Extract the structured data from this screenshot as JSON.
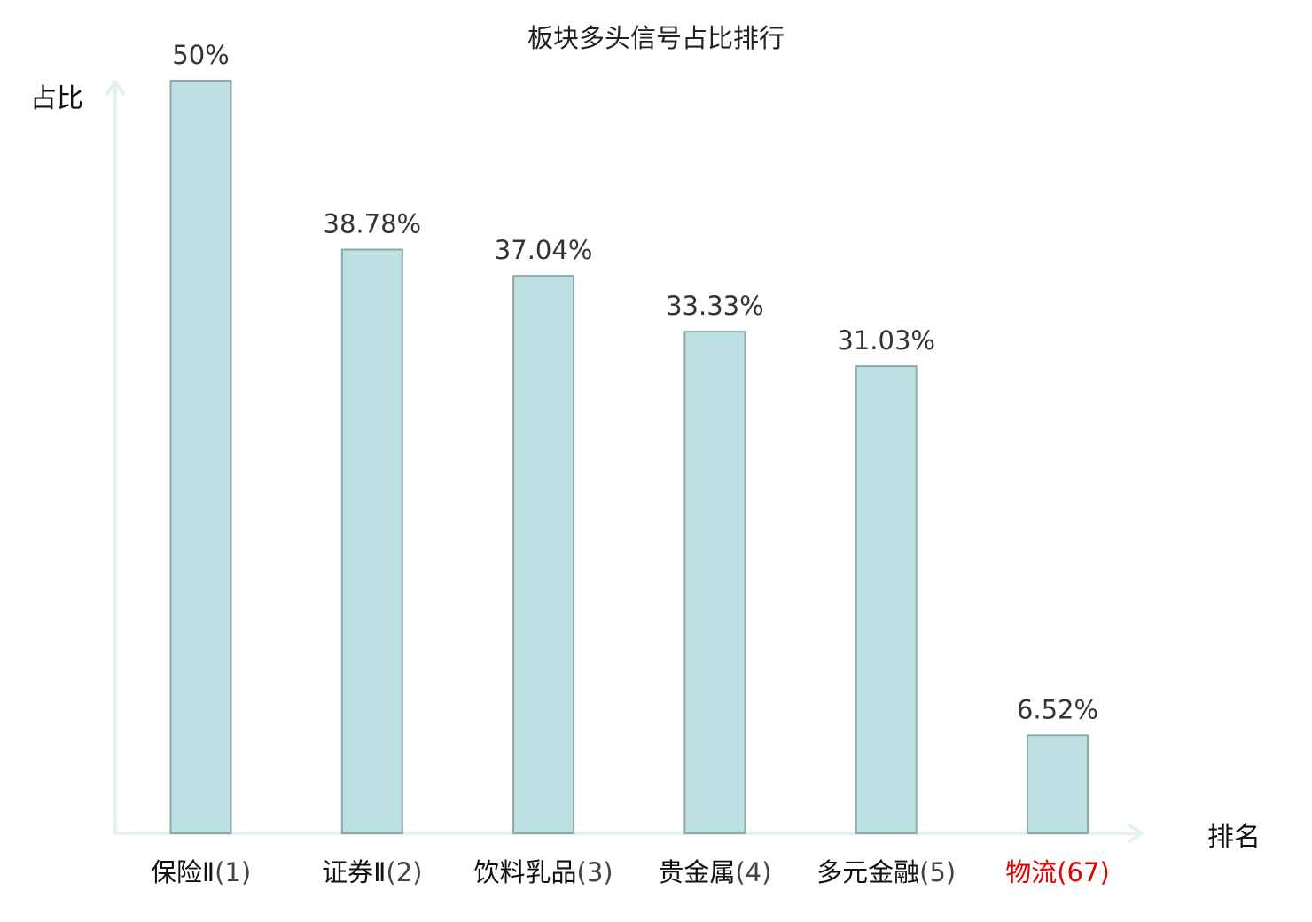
{
  "chart_data": {
    "type": "bar",
    "title": "板块多头信号占比排行",
    "ylabel": "占比",
    "xlabel": "排名",
    "ylim": [
      0,
      50
    ],
    "grid": false,
    "legend": "none",
    "categories": [
      {
        "name": "保险Ⅱ",
        "rank": "(1)",
        "highlight": false
      },
      {
        "name": "证券Ⅱ",
        "rank": "(2)",
        "highlight": false
      },
      {
        "name": "饮料乳品",
        "rank": "(3)",
        "highlight": false
      },
      {
        "name": "贵金属",
        "rank": "(4)",
        "highlight": false
      },
      {
        "name": "多元金融",
        "rank": "(5)",
        "highlight": false
      },
      {
        "name": "物流",
        "rank": "(67)",
        "highlight": true
      }
    ],
    "values": [
      50,
      38.78,
      37.04,
      33.33,
      31.03,
      6.52
    ],
    "value_labels": [
      "50%",
      "38.78%",
      "37.04%",
      "33.33%",
      "31.03%",
      "6.52%"
    ],
    "colors": {
      "bar_fill": "#bde0e3",
      "bar_stroke": "#8fa8aa",
      "axis": "#e2f2f0",
      "label_normal_name": "#111111",
      "label_normal_rank": "#444444",
      "label_highlight": "#e60000"
    }
  }
}
